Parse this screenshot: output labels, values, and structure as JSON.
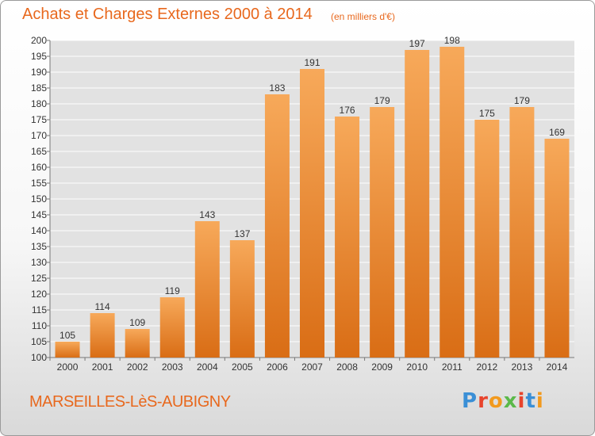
{
  "header": {
    "title": "Achats et Charges Externes 2000 à 2014",
    "subtitle": "(en milliers d'€)"
  },
  "footer": {
    "city": "MARSEILLES-LèS-AUBIGNY",
    "logo_text": "Proxiti",
    "logo_colors": [
      "#3a8fd6",
      "#e8442c",
      "#f29a1e",
      "#5bb94a",
      "#e8442c",
      "#3a8fd6",
      "#f29a1e"
    ]
  },
  "colors": {
    "bar_top": "#f7a95a",
    "bar_bottom": "#d96d15",
    "text_orange": "#e8681d",
    "grid": "#ffffff",
    "plot_bg": "#e2e2e2"
  },
  "chart_data": {
    "type": "bar",
    "title": "Achats et Charges Externes 2000 à 2014",
    "subtitle": "(en milliers d'€)",
    "xlabel": "",
    "ylabel": "",
    "categories": [
      "2000",
      "2001",
      "2002",
      "2003",
      "2004",
      "2005",
      "2006",
      "2007",
      "2008",
      "2009",
      "2010",
      "2011",
      "2012",
      "2013",
      "2014"
    ],
    "values": [
      105,
      114,
      109,
      119,
      143,
      137,
      183,
      191,
      176,
      179,
      197,
      198,
      175,
      179,
      169
    ],
    "ylim": [
      100,
      200
    ],
    "ytick_step": 5,
    "grid": true,
    "data_labels": true
  }
}
